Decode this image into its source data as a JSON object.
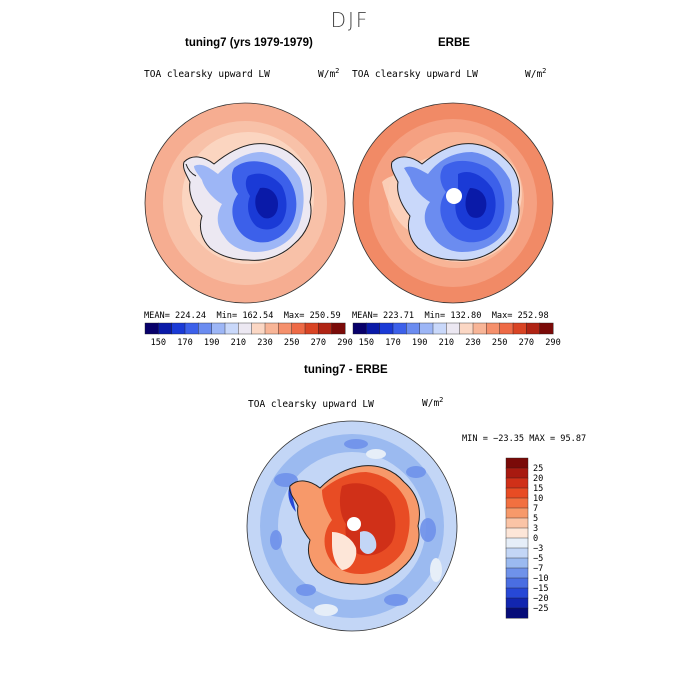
{
  "title": "DJF",
  "panels": [
    {
      "title": "tuning7 (yrs 1979-1979)",
      "field": "TOA clearsky upward LW",
      "units_base": "W/m",
      "units_exp": "2",
      "mean_text": "MEAN= 224.24",
      "min_text": "Min= 162.54",
      "max_text": "Max= 250.59",
      "stats": {
        "mean": 224.24,
        "min": 162.54,
        "max": 250.59
      }
    },
    {
      "title": "ERBE",
      "field": "TOA clearsky upward LW",
      "units_base": "W/m",
      "units_exp": "2",
      "mean_text": "MEAN= 223.71",
      "min_text": "Min= 132.80",
      "max_text": "Max= 252.98",
      "stats": {
        "mean": 223.71,
        "min": 132.8,
        "max": 252.98
      }
    }
  ],
  "abs_colorbar": {
    "colors": [
      "#08006a",
      "#0a1aa8",
      "#1a3ad6",
      "#3c60ea",
      "#6b8cf0",
      "#9db6f6",
      "#c9d8fa",
      "#ece8f2",
      "#fbd7c4",
      "#f8b597",
      "#f5906c",
      "#ee6a46",
      "#d94424",
      "#b02414",
      "#7a0a08"
    ],
    "tick_labels": [
      "150",
      "170",
      "190",
      "210",
      "230",
      "250",
      "270",
      "290"
    ]
  },
  "diff_panel": {
    "title": "tuning7 - ERBE",
    "field": "TOA clearsky upward LW",
    "units_base": "W/m",
    "units_exp": "2",
    "minmax_text": "MIN = −23.35 MAX =  95.87",
    "stats": {
      "min": -23.35,
      "max": 95.87
    }
  },
  "diff_colorbar": {
    "colors": [
      "#7a0a08",
      "#a81a10",
      "#d03018",
      "#e84c24",
      "#f27040",
      "#f7996a",
      "#fbc4a6",
      "#fde6d8",
      "#e6eef8",
      "#c3d6f6",
      "#9bbaf0",
      "#6f92ea",
      "#4a6ee2",
      "#2748d6",
      "#1226b0",
      "#060c78"
    ],
    "tick_labels": [
      "25",
      "20",
      "15",
      "10",
      "7",
      "5",
      "3",
      "0",
      "−3",
      "−5",
      "−7",
      "−10",
      "−15",
      "−20",
      "−25"
    ]
  }
}
